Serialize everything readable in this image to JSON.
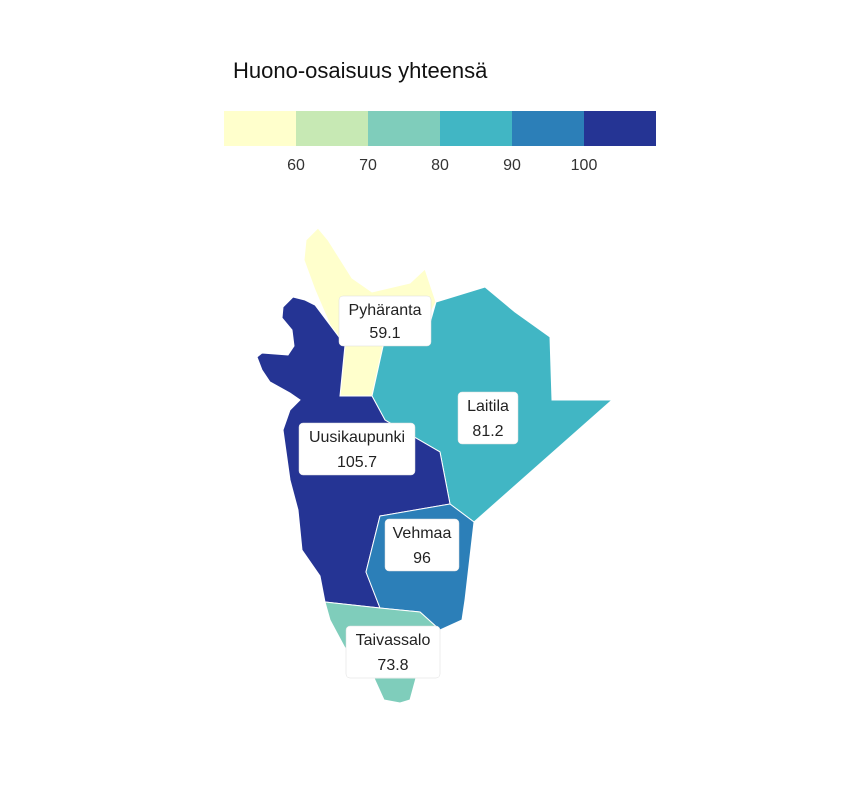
{
  "legend": {
    "title": "Huono-osaisuus yhteensä",
    "thresholds": [
      60,
      70,
      80,
      90,
      100
    ],
    "tick_labels": [
      "60",
      "70",
      "80",
      "90",
      "100"
    ],
    "colors": [
      "#ffffcc",
      "#c7e9b4",
      "#7fcdbb",
      "#41b6c4",
      "#2c7fb8",
      "#253494"
    ]
  },
  "regions": [
    {
      "id": "pyharanta",
      "name": "Pyhäranta",
      "value": "59.1",
      "color": "#ffffcc"
    },
    {
      "id": "laitila",
      "name": "Laitila",
      "value": "81.2",
      "color": "#41b6c4"
    },
    {
      "id": "uusikaupunki",
      "name": "Uusikaupunki",
      "value": "105.7",
      "color": "#253494"
    },
    {
      "id": "vehmaa",
      "name": "Vehmaa",
      "value": "96",
      "color": "#2c7fb8"
    },
    {
      "id": "taivassalo",
      "name": "Taivassalo",
      "value": "73.8",
      "color": "#7fcdbb"
    }
  ]
}
